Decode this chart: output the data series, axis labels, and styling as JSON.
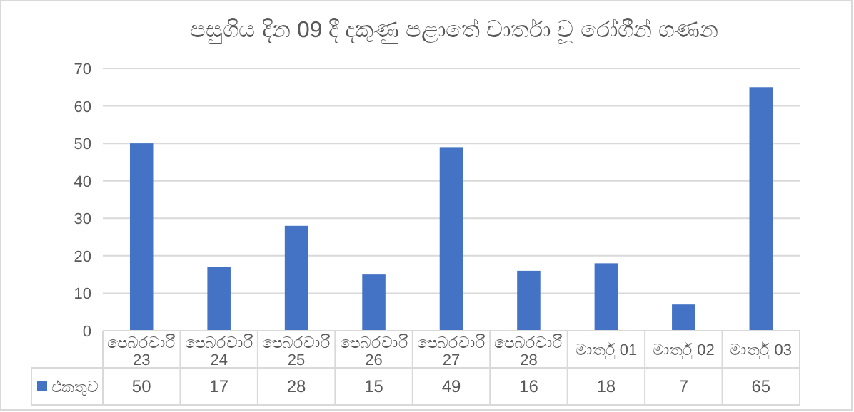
{
  "chart_data": {
    "type": "bar",
    "title": "පසුගිය දින 09 දී දකුණු පළාතේ වාර්තා වූ රෝගීන් ගණන",
    "categories": [
      "පෙබරවාරි 23",
      "පෙබරවාරි 24",
      "පෙබරවාරි 25",
      "පෙබරවාරි 26",
      "පෙබරවාරි 27",
      "පෙබරවාරි 28",
      "මාර්තු 01",
      "මාර්තු 02",
      "මාර්තු 03"
    ],
    "series": [
      {
        "name": "එකතුව",
        "color": "#4472c4",
        "values": [
          50,
          17,
          28,
          15,
          49,
          16,
          18,
          7,
          65
        ]
      }
    ],
    "ylim": [
      0,
      70
    ],
    "yticks": [
      0,
      10,
      20,
      30,
      40,
      50,
      60,
      70
    ],
    "grid": "y",
    "legend": "bottom",
    "data_labels": true
  }
}
